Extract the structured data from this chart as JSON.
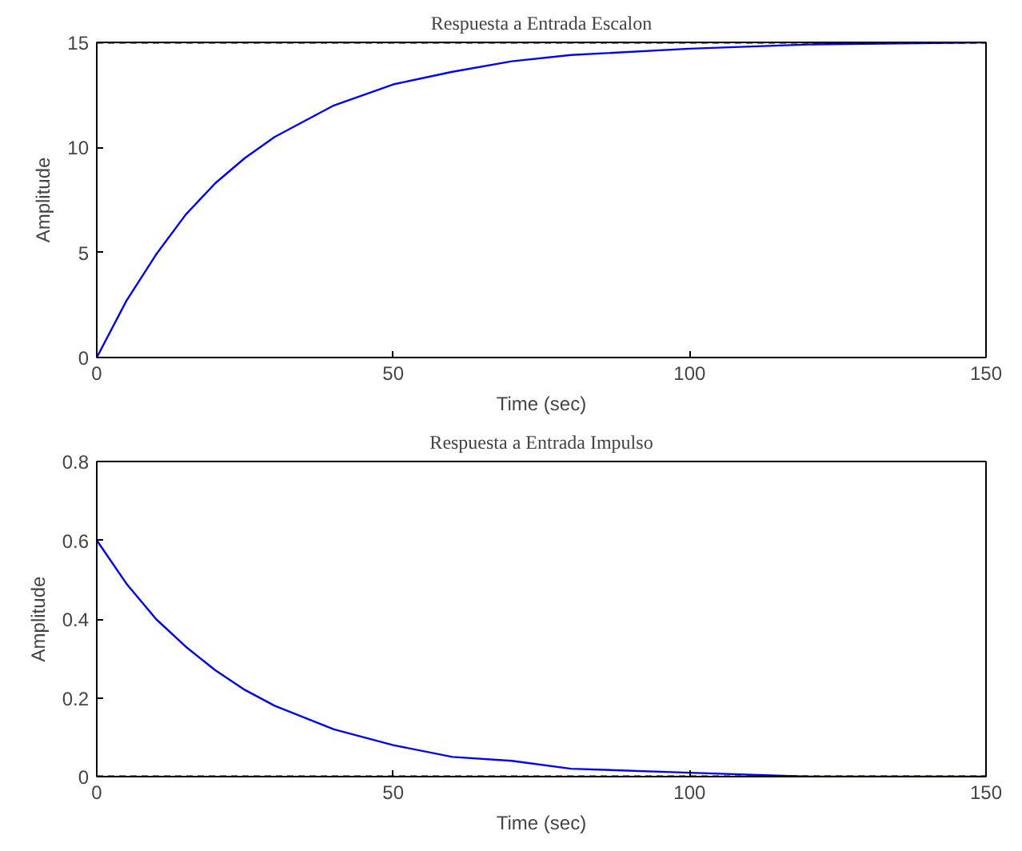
{
  "chart_data": [
    {
      "type": "line",
      "title": "Respuesta a Entrada Escalon",
      "xlabel": "Time (sec)",
      "ylabel": "Amplitude",
      "x": [
        0,
        5,
        10,
        15,
        20,
        25,
        30,
        40,
        50,
        60,
        70,
        80,
        100,
        120,
        150
      ],
      "series": [
        {
          "color": "#0000ff",
          "values": [
            0,
            2.7,
            4.9,
            6.8,
            8.3,
            9.5,
            10.5,
            12.0,
            13.0,
            13.6,
            14.1,
            14.4,
            14.7,
            14.9,
            15.0
          ]
        }
      ],
      "xlim": [
        0,
        150
      ],
      "xticks": [
        0,
        50,
        100,
        150
      ],
      "ylim": [
        0,
        15
      ],
      "yticks": [
        0,
        5,
        10,
        15
      ],
      "grid": false,
      "line_style": "solid",
      "ref_lines": [
        {
          "axis": "y",
          "value": 15,
          "color": "#000000",
          "line_style": "dashed"
        }
      ]
    },
    {
      "type": "line",
      "title": "Respuesta a Entrada Impulso",
      "xlabel": "Time (sec)",
      "ylabel": "Amplitude",
      "x": [
        0,
        5,
        10,
        15,
        20,
        25,
        30,
        40,
        50,
        60,
        70,
        80,
        100,
        120,
        150
      ],
      "series": [
        {
          "color": "#0000ff",
          "values": [
            0.6,
            0.49,
            0.4,
            0.33,
            0.27,
            0.22,
            0.18,
            0.12,
            0.08,
            0.05,
            0.04,
            0.02,
            0.01,
            0.0,
            0.0
          ]
        }
      ],
      "xlim": [
        0,
        150
      ],
      "xticks": [
        0,
        50,
        100,
        150
      ],
      "ylim": [
        0,
        0.8
      ],
      "yticks": [
        0,
        0.2,
        0.4,
        0.6,
        0.8
      ],
      "grid": false,
      "line_style": "solid",
      "ref_lines": [
        {
          "axis": "y",
          "value": 0,
          "color": "#000000",
          "line_style": "dashed"
        }
      ]
    }
  ]
}
